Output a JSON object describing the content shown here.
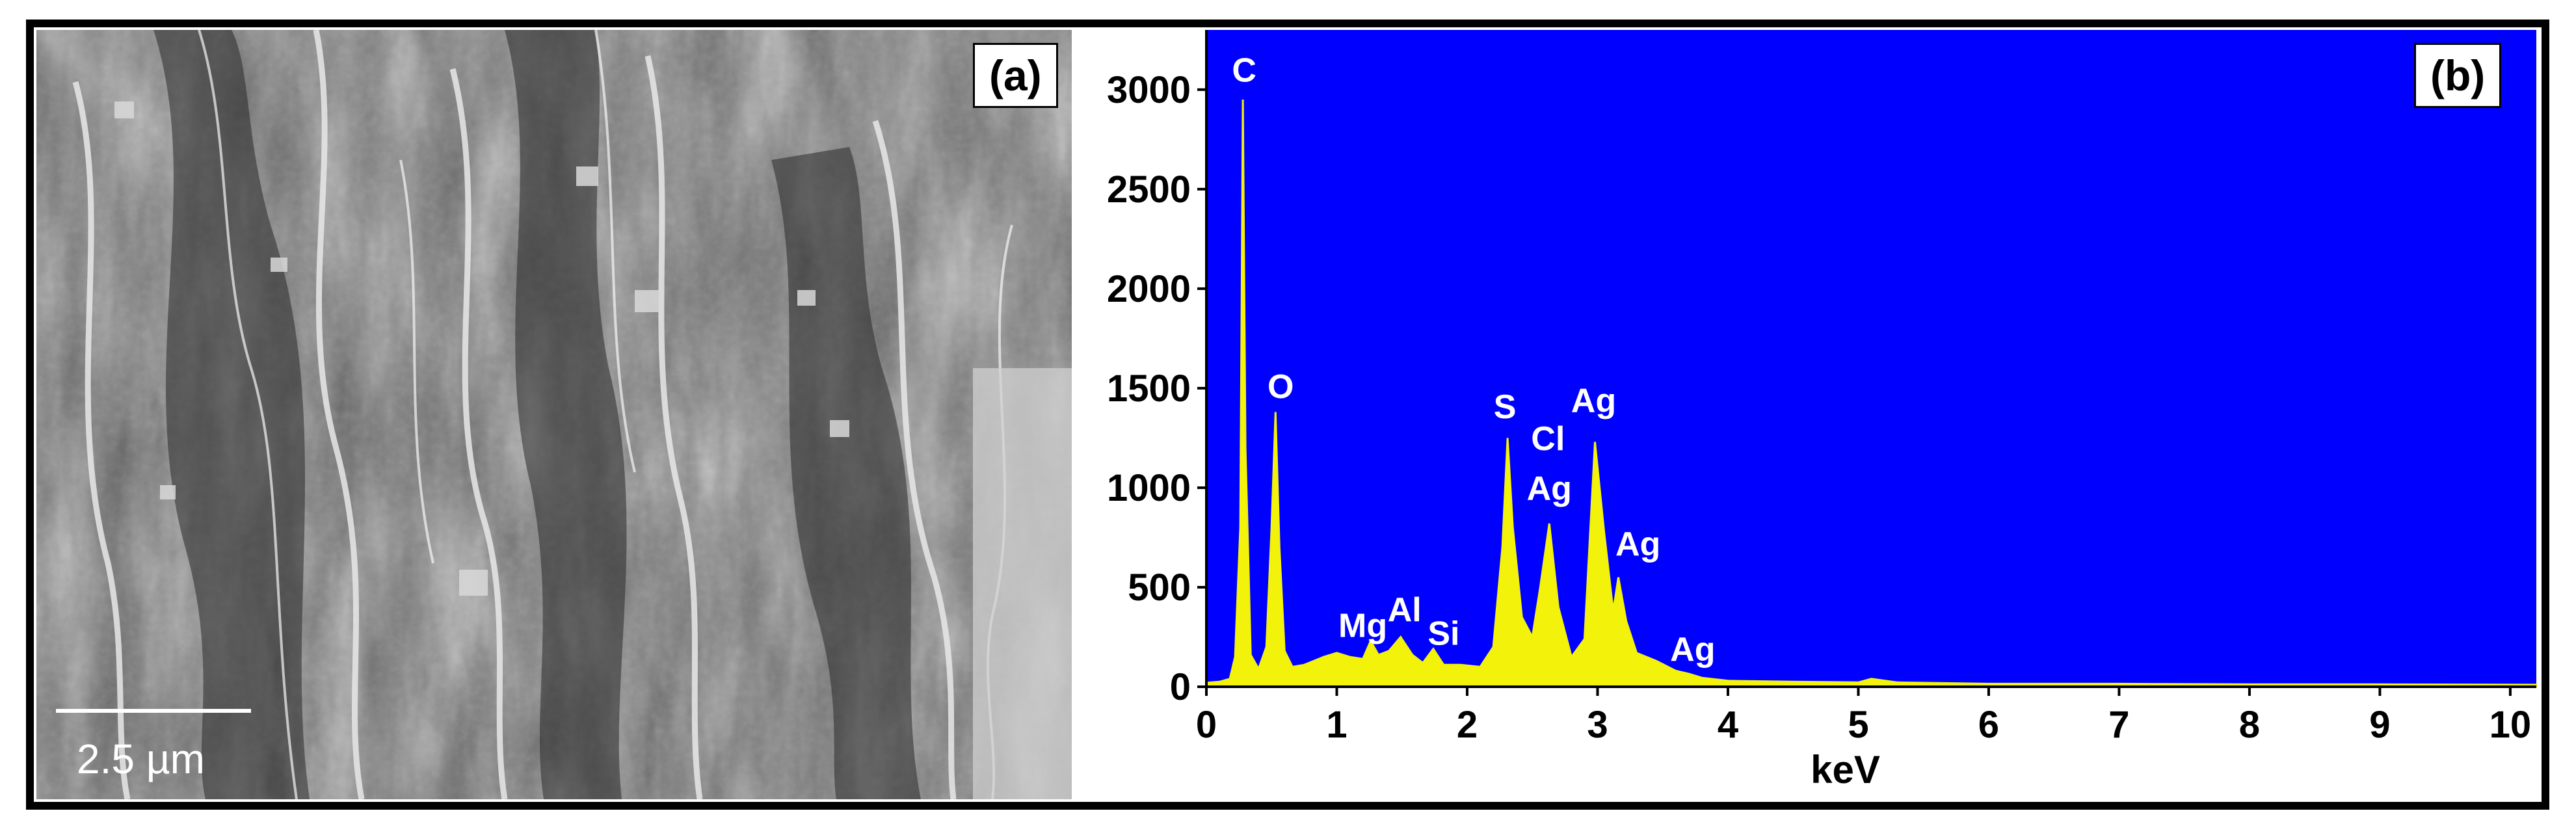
{
  "panels": {
    "a_label": "(a)",
    "b_label": "(b)",
    "scale_bar_text": "2.5 µm"
  },
  "colors": {
    "plot_background": "#0000ff",
    "spectrum_fill": "#f2f20a",
    "peak_label": "#ffffff"
  },
  "chart_data": {
    "type": "area",
    "title": "",
    "xlabel": "keV",
    "ylabel": "",
    "xlim": [
      0,
      10.2
    ],
    "ylim": [
      0,
      3300
    ],
    "x_ticks": [
      0,
      1,
      2,
      3,
      4,
      5,
      6,
      7,
      8,
      9,
      10
    ],
    "y_ticks": [
      0,
      500,
      1000,
      1500,
      2000,
      2500,
      3000
    ],
    "grid": false,
    "legend": "none",
    "series": [
      {
        "x": [
          0,
          0.1,
          0.18,
          0.22,
          0.26,
          0.28,
          0.3,
          0.34,
          0.4,
          0.46,
          0.5,
          0.53,
          0.56,
          0.6,
          0.66,
          0.75,
          0.9,
          1.0,
          1.1,
          1.2,
          1.26,
          1.32,
          1.4,
          1.49,
          1.58,
          1.66,
          1.74,
          1.82,
          1.95,
          2.1,
          2.2,
          2.27,
          2.31,
          2.35,
          2.42,
          2.5,
          2.56,
          2.63,
          2.7,
          2.8,
          2.9,
          2.98,
          3.05,
          3.12,
          3.16,
          3.22,
          3.3,
          3.45,
          3.6,
          3.7,
          3.8,
          4.0,
          4.5,
          5.0,
          5.1,
          5.3,
          6.0,
          7.0,
          8.0,
          9.0,
          10.2
        ],
        "y": [
          20,
          25,
          40,
          150,
          800,
          2950,
          1200,
          160,
          90,
          200,
          800,
          1380,
          700,
          180,
          100,
          110,
          150,
          170,
          150,
          140,
          230,
          160,
          180,
          250,
          160,
          120,
          190,
          110,
          110,
          100,
          200,
          700,
          1250,
          800,
          350,
          250,
          500,
          820,
          400,
          150,
          240,
          1230,
          780,
          380,
          550,
          330,
          170,
          130,
          80,
          65,
          45,
          30,
          25,
          22,
          40,
          22,
          15,
          15,
          12,
          12,
          10
        ]
      }
    ],
    "annotations": [
      {
        "text": "C",
        "x": 0.29,
        "y": 3040
      },
      {
        "text": "O",
        "x": 0.57,
        "y": 1450
      },
      {
        "text": "Mg",
        "x": 1.2,
        "y": 250
      },
      {
        "text": "Al",
        "x": 1.52,
        "y": 330
      },
      {
        "text": "Si",
        "x": 1.82,
        "y": 210
      },
      {
        "text": "S",
        "x": 2.29,
        "y": 1350
      },
      {
        "text": "Cl",
        "x": 2.62,
        "y": 1190
      },
      {
        "text": "Ag",
        "x": 2.97,
        "y": 1380
      },
      {
        "text": "Ag",
        "x": 2.63,
        "y": 940
      },
      {
        "text": "Ag",
        "x": 3.31,
        "y": 660
      },
      {
        "text": "Ag",
        "x": 3.73,
        "y": 130
      }
    ]
  }
}
